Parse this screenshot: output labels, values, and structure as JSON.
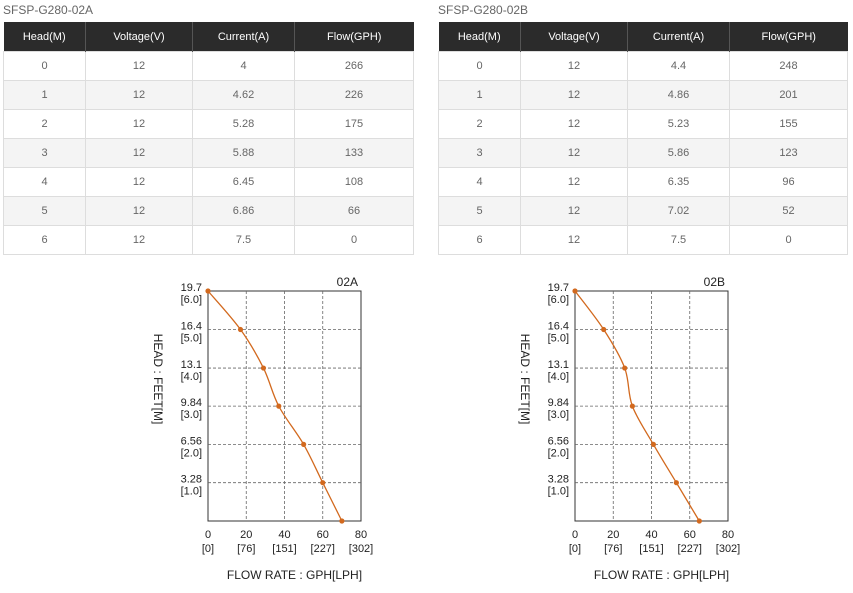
{
  "tables": [
    {
      "caption": "SFSP-G280-02A",
      "headers": [
        "Head(M)",
        "Voltage(V)",
        "Current(A)",
        "Flow(GPH)"
      ],
      "rows": [
        [
          "0",
          "12",
          "4",
          "266"
        ],
        [
          "1",
          "12",
          "4.62",
          "226"
        ],
        [
          "2",
          "12",
          "5.28",
          "175"
        ],
        [
          "3",
          "12",
          "5.88",
          "133"
        ],
        [
          "4",
          "12",
          "6.45",
          "108"
        ],
        [
          "5",
          "12",
          "6.86",
          "66"
        ],
        [
          "6",
          "12",
          "7.5",
          "0"
        ]
      ]
    },
    {
      "caption": "SFSP-G280-02B",
      "headers": [
        "Head(M)",
        "Voltage(V)",
        "Current(A)",
        "Flow(GPH)"
      ],
      "rows": [
        [
          "0",
          "12",
          "4.4",
          "248"
        ],
        [
          "1",
          "12",
          "4.86",
          "201"
        ],
        [
          "2",
          "12",
          "5.23",
          "155"
        ],
        [
          "3",
          "12",
          "5.86",
          "123"
        ],
        [
          "4",
          "12",
          "6.35",
          "96"
        ],
        [
          "5",
          "12",
          "7.02",
          "52"
        ],
        [
          "6",
          "12",
          "7.5",
          "0"
        ]
      ]
    }
  ],
  "chart_data": [
    {
      "type": "line",
      "title": "02A",
      "xlabel": "FLOW RATE : GPH[LPH]",
      "ylabel": "HEAD : FEET[M]",
      "xlim": [
        0,
        80
      ],
      "ylim": [
        0,
        19.7
      ],
      "x_ticks": [
        {
          "value": 0,
          "label": "0",
          "sub": "[0]"
        },
        {
          "value": 20,
          "label": "20",
          "sub": "[76]"
        },
        {
          "value": 40,
          "label": "40",
          "sub": "[151]"
        },
        {
          "value": 60,
          "label": "60",
          "sub": "[227]"
        },
        {
          "value": 80,
          "label": "80",
          "sub": "[302]"
        }
      ],
      "y_ticks": [
        {
          "value": 19.7,
          "label": "19.7",
          "sub": "[6.0]"
        },
        {
          "value": 16.4,
          "label": "16.4",
          "sub": "[5.0]"
        },
        {
          "value": 13.1,
          "label": "13.1",
          "sub": "[4.0]"
        },
        {
          "value": 9.84,
          "label": "9.84",
          "sub": "[3.0]"
        },
        {
          "value": 6.56,
          "label": "6.56",
          "sub": "[2.0]"
        },
        {
          "value": 3.28,
          "label": "3.28",
          "sub": "[1.0]"
        }
      ],
      "grid": true,
      "line_color": "#d2691e",
      "series": [
        {
          "x": [
            0,
            17,
            29,
            37,
            50,
            60,
            70
          ],
          "y": [
            19.7,
            16.4,
            13.1,
            9.84,
            6.56,
            3.28,
            0
          ]
        }
      ]
    },
    {
      "type": "line",
      "title": "02B",
      "xlabel": "FLOW RATE : GPH[LPH]",
      "ylabel": "HEAD : FEET[M]",
      "xlim": [
        0,
        80
      ],
      "ylim": [
        0,
        19.7
      ],
      "x_ticks": [
        {
          "value": 0,
          "label": "0",
          "sub": "[0]"
        },
        {
          "value": 20,
          "label": "20",
          "sub": "[76]"
        },
        {
          "value": 40,
          "label": "40",
          "sub": "[151]"
        },
        {
          "value": 60,
          "label": "60",
          "sub": "[227]"
        },
        {
          "value": 80,
          "label": "80",
          "sub": "[302]"
        }
      ],
      "y_ticks": [
        {
          "value": 19.7,
          "label": "19.7",
          "sub": "[6.0]"
        },
        {
          "value": 16.4,
          "label": "16.4",
          "sub": "[5.0]"
        },
        {
          "value": 13.1,
          "label": "13.1",
          "sub": "[4.0]"
        },
        {
          "value": 9.84,
          "label": "9.84",
          "sub": "[3.0]"
        },
        {
          "value": 6.56,
          "label": "6.56",
          "sub": "[2.0]"
        },
        {
          "value": 3.28,
          "label": "3.28",
          "sub": "[1.0]"
        }
      ],
      "grid": true,
      "line_color": "#d2691e",
      "series": [
        {
          "x": [
            0,
            15,
            26,
            30,
            41,
            53,
            65
          ],
          "y": [
            19.7,
            16.4,
            13.1,
            9.84,
            6.56,
            3.28,
            0
          ]
        }
      ]
    }
  ]
}
